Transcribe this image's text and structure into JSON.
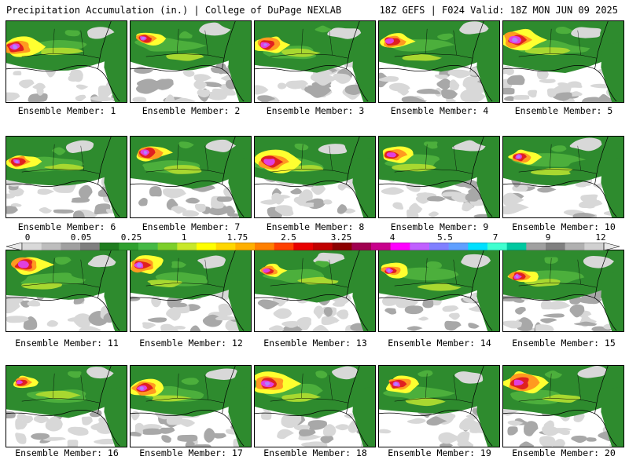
{
  "header": {
    "title": "Precipitation Accumulation (in.) | College of DuPage NEXLAB",
    "run_info": "18Z GEFS | F024 Valid: 18Z MON JUN 09 2025"
  },
  "panels": [
    {
      "label": "Ensemble Member: 1"
    },
    {
      "label": "Ensemble Member: 2"
    },
    {
      "label": "Ensemble Member: 3"
    },
    {
      "label": "Ensemble Member: 4"
    },
    {
      "label": "Ensemble Member: 5"
    },
    {
      "label": "Ensemble Member: 6"
    },
    {
      "label": "Ensemble Member: 7"
    },
    {
      "label": "Ensemble Member: 8"
    },
    {
      "label": "Ensemble Member: 9"
    },
    {
      "label": "Ensemble Member: 10"
    },
    {
      "label": "Ensemble Member: 11"
    },
    {
      "label": "Ensemble Member: 12"
    },
    {
      "label": "Ensemble Member: 13"
    },
    {
      "label": "Ensemble Member: 14"
    },
    {
      "label": "Ensemble Member: 15"
    },
    {
      "label": "Ensemble Member: 16"
    },
    {
      "label": "Ensemble Member: 17"
    },
    {
      "label": "Ensemble Member: 18"
    },
    {
      "label": "Ensemble Member: 19"
    },
    {
      "label": "Ensemble Member: 20"
    }
  ],
  "colorbar": {
    "tick_labels": [
      "0",
      "0.05",
      "0.25",
      "1",
      "1.75",
      "2.5",
      "3.25",
      "4",
      "5.5",
      "7",
      "9",
      "12"
    ],
    "colors": [
      "#d9d9d9",
      "#bdbdbd",
      "#a0a0a0",
      "#7f7f7f",
      "#1e7d1e",
      "#2ea02e",
      "#45b945",
      "#7ccf2a",
      "#c8e82a",
      "#ffff00",
      "#ffd700",
      "#ffb000",
      "#ff8000",
      "#ff4000",
      "#e80000",
      "#c00000",
      "#8b0000",
      "#a00050",
      "#c8008c",
      "#ff00ff",
      "#c060ff",
      "#8080ff",
      "#60a0ff",
      "#00e0ff",
      "#40ffd0",
      "#00c8a0",
      "#a0a0a0",
      "#808080",
      "#b0b0b0",
      "#d0d0d0"
    ]
  },
  "map_colors": {
    "background": "#ffffff",
    "light_gray": "#d8d8d8",
    "dark_gray": "#a8a8a8",
    "green": "#2e8b2e",
    "light_green": "#4caf3c",
    "yellow_green": "#a8d830",
    "yellow": "#ffff30",
    "orange": "#ff9a20",
    "red": "#e02020",
    "magenta": "#e040e0",
    "violet": "#b080ff"
  }
}
